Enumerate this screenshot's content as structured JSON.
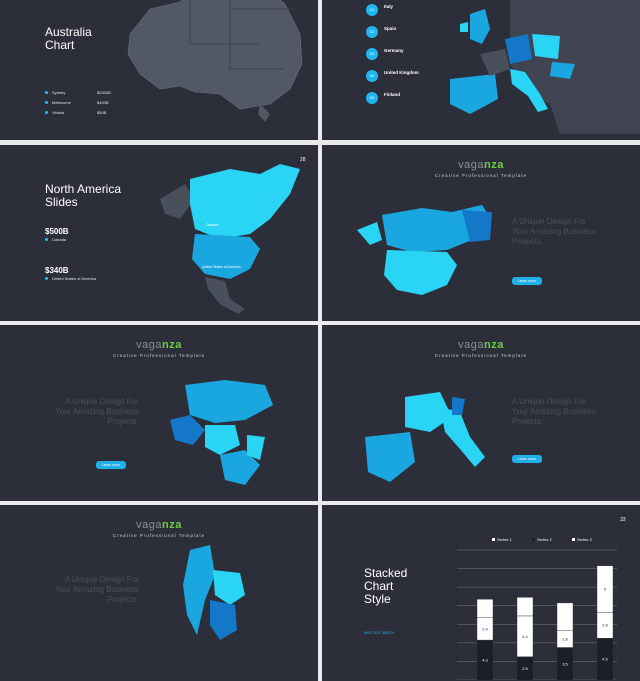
{
  "slide1": {
    "title_line1": "Australia",
    "title_line2": "Chart",
    "legend": [
      {
        "label": "Sydney",
        "value": "$2300B"
      },
      {
        "label": "Melbourne",
        "value": "$400B"
      },
      {
        "label": "Vittoria",
        "value": "$50B"
      }
    ]
  },
  "slide2": {
    "countries": [
      {
        "num": "01",
        "name": "Italy"
      },
      {
        "num": "02",
        "name": "Spain"
      },
      {
        "num": "03",
        "name": "Germany"
      },
      {
        "num": "04",
        "name": "United Kingdom"
      },
      {
        "num": "05",
        "name": "Finland"
      }
    ]
  },
  "slide3": {
    "title_line1": "North America",
    "title_line2": "Slides",
    "page_num": "28",
    "stat1_value": "$500B",
    "stat1_label": "Canada",
    "stat2_value": "$340B",
    "stat2_label": "United States of America",
    "map_label_canada": "Canada",
    "map_label_usa": "United States of America"
  },
  "brand": {
    "part_a": "vaga",
    "part_b": "nza",
    "subtitle": "Creative Professional Template"
  },
  "headline": {
    "line1": "A Unique Design For",
    "line2": "Your Amazing Business",
    "line3": "Projects."
  },
  "button_label": "Learn more",
  "slide8": {
    "title_line1": "Stacked",
    "title_line2": "Chart",
    "title_line3": "Style",
    "page_num": "33",
    "subtitle": "WAS TEXT WIDTH"
  },
  "chart_data": {
    "type": "bar",
    "stacked": true,
    "series": [
      {
        "name": "Series 1",
        "values": [
          4.3,
          2.5,
          3.5,
          4.5
        ]
      },
      {
        "name": "Series 2",
        "values": [
          2.4,
          4.4,
          1.8,
          2.8
        ]
      },
      {
        "name": "Series 3",
        "values": [
          2,
          2,
          3,
          5
        ]
      }
    ],
    "data_labels": [
      "4.3",
      "2.4",
      "2.5",
      "4.4",
      "3.5",
      "1.8",
      "4.5",
      "2.8",
      "5"
    ],
    "legend_position": "top",
    "grid": true
  },
  "colors": {
    "background": "#2c2f3a",
    "accent": "#1fb6ef",
    "brand_green": "#6bcf3d",
    "map_light": "#2ad4f5",
    "map_mid": "#1aa7e0",
    "map_dark": "#1577c8"
  }
}
